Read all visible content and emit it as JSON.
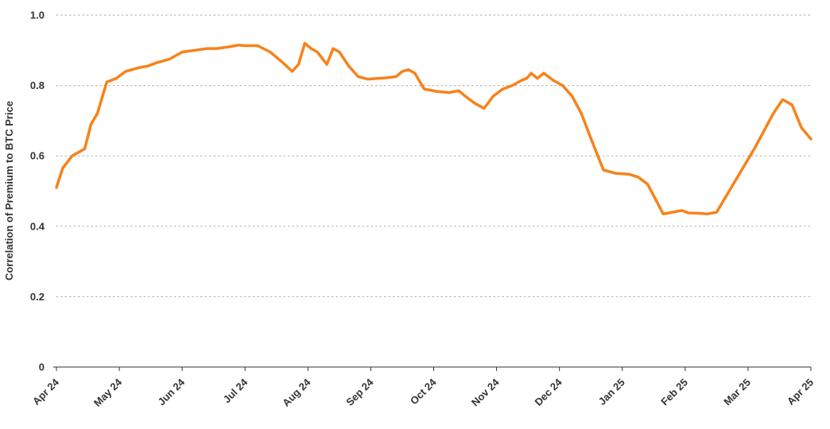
{
  "chart_data": {
    "type": "line",
    "title": "",
    "xlabel": "",
    "ylabel": "Correlation of Premium to BTC Price",
    "ylim": [
      0,
      1.0
    ],
    "y_ticks": [
      "0",
      "0.2",
      "0.4",
      "0.6",
      "0.8",
      "1.0"
    ],
    "y_tick_values": [
      0,
      0.2,
      0.4,
      0.6,
      0.8,
      1.0
    ],
    "x_tick_labels": [
      "Apr 24",
      "May 24",
      "Jun 24",
      "Jul 24",
      "Aug 24",
      "Sep 24",
      "Oct 24",
      "Nov 24",
      "Dec 24",
      "Jan 25",
      "Feb 25",
      "Mar 25",
      "Apr 25"
    ],
    "grid": "horizontal dotted",
    "legend": "none",
    "series": [
      {
        "color": "#f7821b",
        "x": [
          0,
          0.1,
          0.25,
          0.45,
          0.55,
          0.65,
          0.8,
          0.95,
          1.1,
          1.3,
          1.45,
          1.6,
          1.8,
          2.0,
          2.2,
          2.4,
          2.55,
          2.75,
          2.9,
          3.0,
          3.2,
          3.4,
          3.6,
          3.75,
          3.85,
          3.95,
          4.05,
          4.15,
          4.3,
          4.4,
          4.5,
          4.65,
          4.8,
          4.95,
          5.1,
          5.25,
          5.4,
          5.5,
          5.6,
          5.7,
          5.85,
          6.05,
          6.25,
          6.4,
          6.5,
          6.65,
          6.8,
          6.95,
          7.1,
          7.25,
          7.4,
          7.48,
          7.55,
          7.65,
          7.75,
          7.9,
          8.05,
          8.2,
          8.35,
          8.5,
          8.7,
          8.9,
          9.1,
          9.25,
          9.4,
          9.55,
          9.65,
          9.8,
          9.95,
          10.05,
          10.2,
          10.35,
          10.5,
          10.7,
          10.9,
          11.1,
          11.25,
          11.4,
          11.55,
          11.7,
          11.85,
          12.0
        ],
        "values": [
          0.51,
          0.565,
          0.6,
          0.62,
          0.69,
          0.72,
          0.81,
          0.82,
          0.84,
          0.85,
          0.855,
          0.865,
          0.875,
          0.895,
          0.9,
          0.905,
          0.905,
          0.91,
          0.915,
          0.913,
          0.913,
          0.895,
          0.865,
          0.84,
          0.86,
          0.92,
          0.905,
          0.895,
          0.86,
          0.905,
          0.895,
          0.855,
          0.825,
          0.818,
          0.82,
          0.822,
          0.825,
          0.84,
          0.845,
          0.835,
          0.79,
          0.783,
          0.78,
          0.785,
          0.77,
          0.75,
          0.735,
          0.77,
          0.79,
          0.8,
          0.815,
          0.82,
          0.835,
          0.82,
          0.835,
          0.815,
          0.8,
          0.77,
          0.72,
          0.65,
          0.56,
          0.55,
          0.548,
          0.54,
          0.52,
          0.47,
          0.435,
          0.44,
          0.445,
          0.438,
          0.437,
          0.435,
          0.44,
          0.5,
          0.56,
          0.62,
          0.67,
          0.72,
          0.76,
          0.745,
          0.68,
          0.648
        ]
      }
    ]
  }
}
